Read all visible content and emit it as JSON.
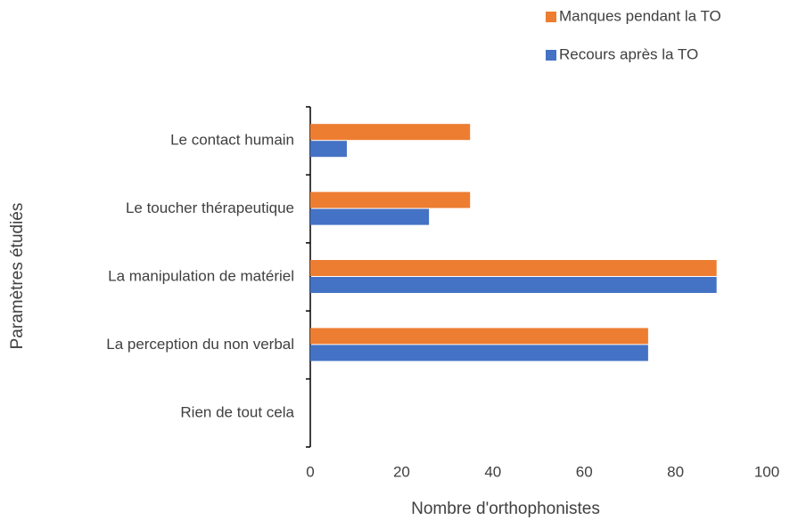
{
  "chart_data": {
    "type": "hbar",
    "x_label": "Nombre d'orthophonistes",
    "y_label": "Paramètres étudiés",
    "categories": [
      "Le contact humain",
      "Le toucher thérapeutique",
      "La manipulation de matériel",
      "La perception du non verbal",
      "Rien de tout cela"
    ],
    "series": [
      {
        "name": "Manques pendant la TO",
        "color": "#ed7d31",
        "values": [
          35,
          35,
          89,
          74,
          0
        ]
      },
      {
        "name": "Recours après la TO",
        "color": "#4472c4",
        "values": [
          8,
          26,
          89,
          74,
          0
        ]
      }
    ],
    "xlim": [
      0,
      100
    ],
    "xticks": [
      0,
      20,
      40,
      60,
      80,
      100
    ],
    "grid": false,
    "legend": "top-right"
  }
}
